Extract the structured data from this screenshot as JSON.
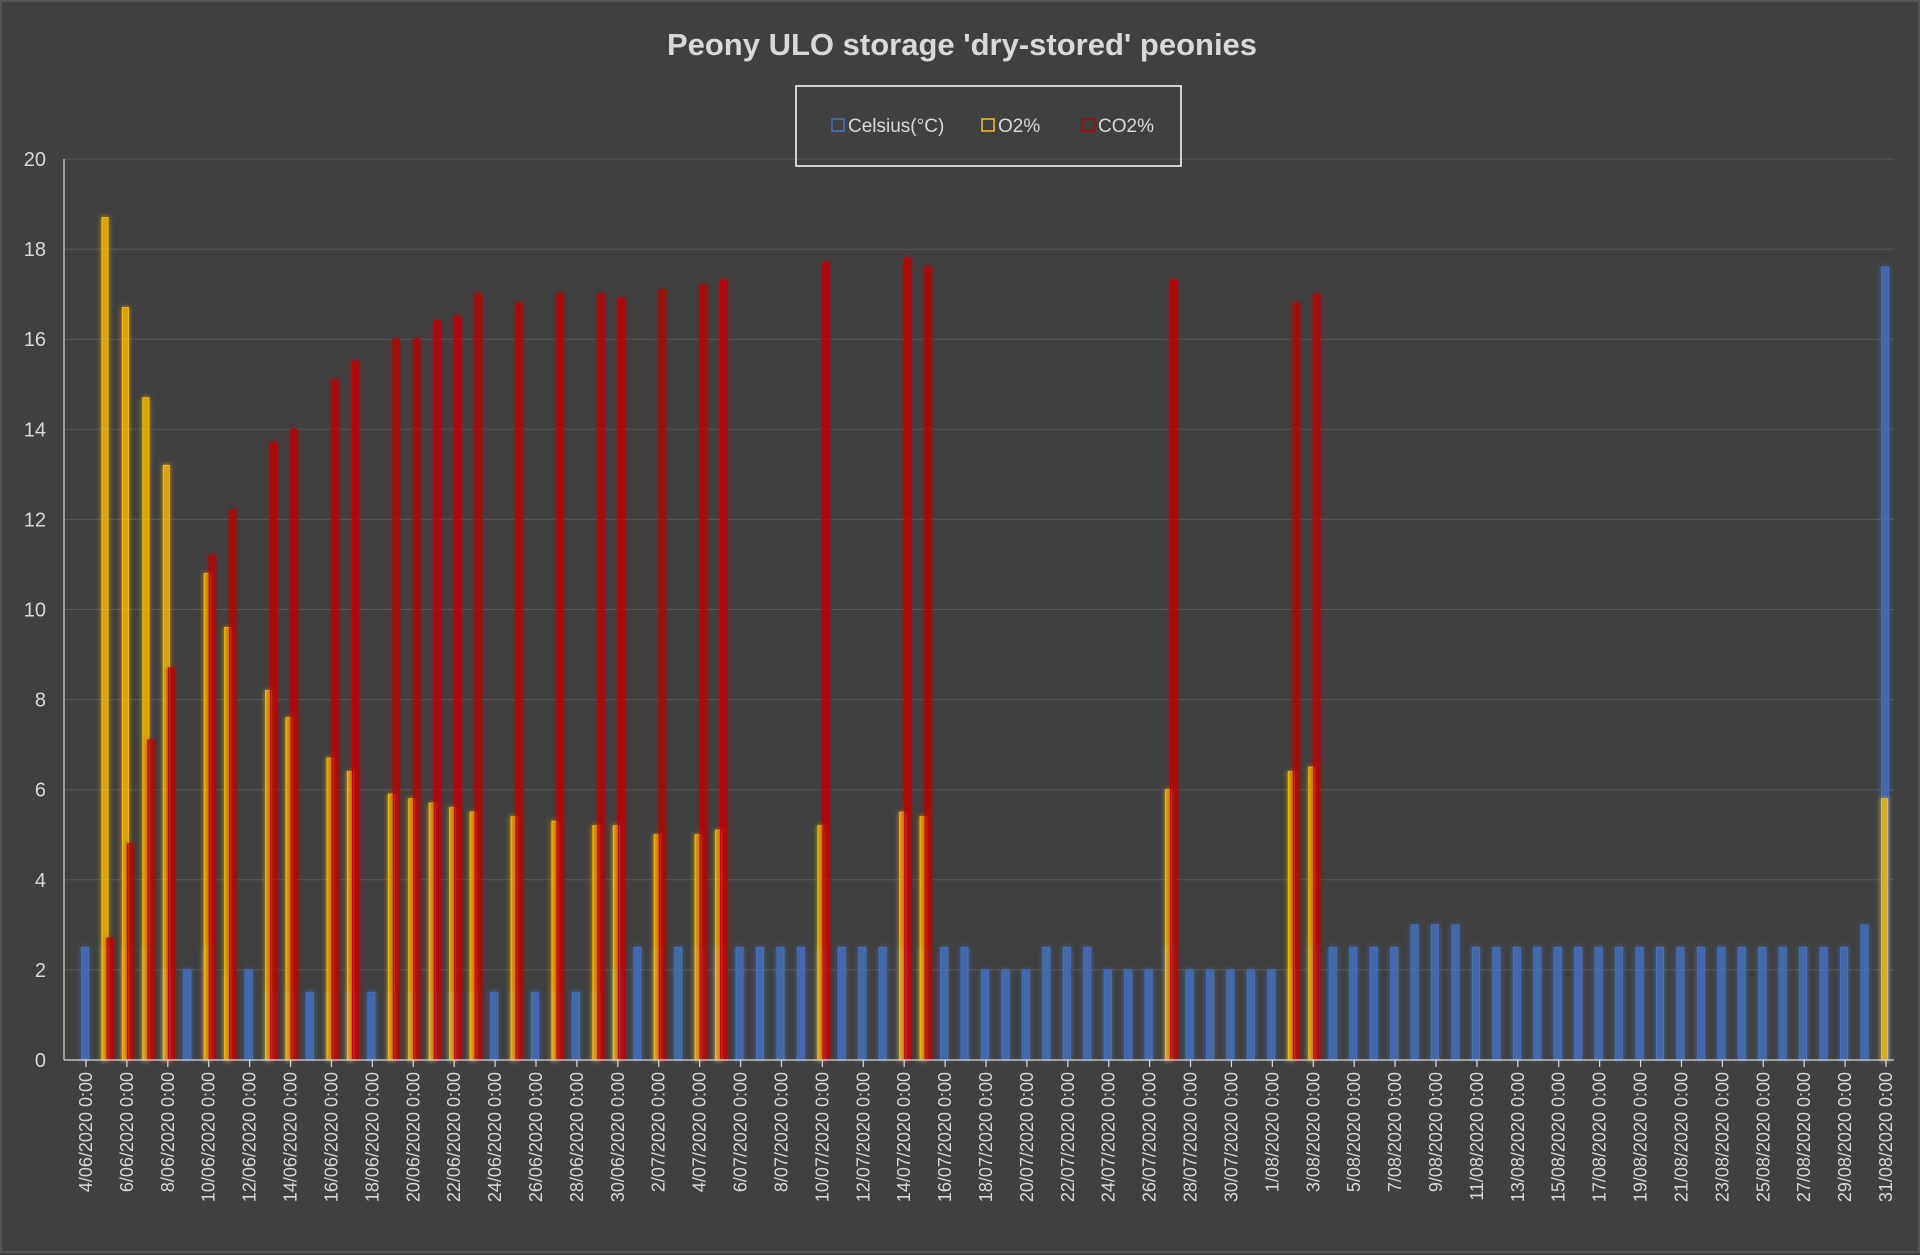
{
  "chart_data": {
    "type": "bar",
    "title": "Peony ULO storage 'dry-stored' peonies",
    "ylim": [
      0,
      20
    ],
    "yticks": [
      0,
      2,
      4,
      6,
      8,
      10,
      12,
      14,
      16,
      18,
      20
    ],
    "grid": true,
    "legend_position": "top-center",
    "x_start_date": "2020-06-04",
    "x_end_date": "2020-08-31",
    "xtick_labels": [
      "4/06/2020 0:00",
      "6/06/2020 0:00",
      "8/06/2020 0:00",
      "10/06/2020 0:00",
      "12/06/2020 0:00",
      "14/06/2020 0:00",
      "16/06/2020 0:00",
      "18/06/2020 0:00",
      "20/06/2020 0:00",
      "22/06/2020 0:00",
      "24/06/2020 0:00",
      "26/06/2020 0:00",
      "28/06/2020 0:00",
      "30/06/2020 0:00",
      "2/07/2020 0:00",
      "4/07/2020 0:00",
      "6/07/2020 0:00",
      "8/07/2020 0:00",
      "10/07/2020 0:00",
      "12/07/2020 0:00",
      "14/07/2020 0:00",
      "16/07/2020 0:00",
      "18/07/2020 0:00",
      "20/07/2020 0:00",
      "22/07/2020 0:00",
      "24/07/2020 0:00",
      "26/07/2020 0:00",
      "28/07/2020 0:00",
      "30/07/2020 0:00",
      "1/08/2020 0:00",
      "3/08/2020 0:00",
      "5/08/2020 0:00",
      "7/08/2020 0:00",
      "9/08/2020 0:00",
      "11/08/2020 0:00",
      "13/08/2020 0:00",
      "15/08/2020 0:00",
      "17/08/2020 0:00",
      "19/08/2020 0:00",
      "21/08/2020 0:00",
      "23/08/2020 0:00",
      "25/08/2020 0:00",
      "27/08/2020 0:00",
      "29/08/2020 0:00",
      "31/08/2020 0:00"
    ],
    "series": [
      {
        "name": "Celsius(°C)",
        "color": "#4472c4",
        "points": [
          [
            "2020-06-04",
            2.5
          ],
          [
            "2020-06-05",
            2.5
          ],
          [
            "2020-06-06",
            2.5
          ],
          [
            "2020-06-07",
            2.5
          ],
          [
            "2020-06-08",
            2.0
          ],
          [
            "2020-06-09",
            2.0
          ],
          [
            "2020-06-10",
            2.5
          ],
          [
            "2020-06-11",
            2.0
          ],
          [
            "2020-06-12",
            2.0
          ],
          [
            "2020-06-13",
            1.5
          ],
          [
            "2020-06-14",
            1.5
          ],
          [
            "2020-06-15",
            1.5
          ],
          [
            "2020-06-16",
            1.5
          ],
          [
            "2020-06-17",
            1.5
          ],
          [
            "2020-06-18",
            1.5
          ],
          [
            "2020-06-19",
            1.5
          ],
          [
            "2020-06-20",
            1.5
          ],
          [
            "2020-06-21",
            1.5
          ],
          [
            "2020-06-22",
            1.5
          ],
          [
            "2020-06-23",
            1.5
          ],
          [
            "2020-06-24",
            1.5
          ],
          [
            "2020-06-25",
            1.5
          ],
          [
            "2020-06-26",
            1.5
          ],
          [
            "2020-06-27",
            1.5
          ],
          [
            "2020-06-28",
            1.5
          ],
          [
            "2020-06-29",
            1.5
          ],
          [
            "2020-06-30",
            2.0
          ],
          [
            "2020-07-01",
            2.5
          ],
          [
            "2020-07-02",
            2.5
          ],
          [
            "2020-07-03",
            2.5
          ],
          [
            "2020-07-04",
            2.5
          ],
          [
            "2020-07-05",
            2.5
          ],
          [
            "2020-07-06",
            2.5
          ],
          [
            "2020-07-07",
            2.5
          ],
          [
            "2020-07-08",
            2.5
          ],
          [
            "2020-07-09",
            2.5
          ],
          [
            "2020-07-10",
            2.5
          ],
          [
            "2020-07-11",
            2.5
          ],
          [
            "2020-07-12",
            2.5
          ],
          [
            "2020-07-13",
            2.5
          ],
          [
            "2020-07-14",
            2.5
          ],
          [
            "2020-07-15",
            2.5
          ],
          [
            "2020-07-16",
            2.5
          ],
          [
            "2020-07-17",
            2.5
          ],
          [
            "2020-07-18",
            2.0
          ],
          [
            "2020-07-19",
            2.0
          ],
          [
            "2020-07-20",
            2.0
          ],
          [
            "2020-07-21",
            2.5
          ],
          [
            "2020-07-22",
            2.5
          ],
          [
            "2020-07-23",
            2.5
          ],
          [
            "2020-07-24",
            2.0
          ],
          [
            "2020-07-25",
            2.0
          ],
          [
            "2020-07-26",
            2.0
          ],
          [
            "2020-07-27",
            2.5
          ],
          [
            "2020-07-28",
            2.0
          ],
          [
            "2020-07-29",
            2.0
          ],
          [
            "2020-07-30",
            2.0
          ],
          [
            "2020-07-31",
            2.0
          ],
          [
            "2020-08-01",
            2.0
          ],
          [
            "2020-08-02",
            2.0
          ],
          [
            "2020-08-03",
            2.5
          ],
          [
            "2020-08-04",
            2.5
          ],
          [
            "2020-08-05",
            2.5
          ],
          [
            "2020-08-06",
            2.5
          ],
          [
            "2020-08-07",
            2.5
          ],
          [
            "2020-08-08",
            3.0
          ],
          [
            "2020-08-09",
            3.0
          ],
          [
            "2020-08-10",
            3.0
          ],
          [
            "2020-08-11",
            2.5
          ],
          [
            "2020-08-12",
            2.5
          ],
          [
            "2020-08-13",
            2.5
          ],
          [
            "2020-08-14",
            2.5
          ],
          [
            "2020-08-15",
            2.5
          ],
          [
            "2020-08-16",
            2.5
          ],
          [
            "2020-08-17",
            2.5
          ],
          [
            "2020-08-18",
            2.5
          ],
          [
            "2020-08-19",
            2.5
          ],
          [
            "2020-08-20",
            2.5
          ],
          [
            "2020-08-21",
            2.5
          ],
          [
            "2020-08-22",
            2.5
          ],
          [
            "2020-08-23",
            2.5
          ],
          [
            "2020-08-24",
            2.5
          ],
          [
            "2020-08-25",
            2.5
          ],
          [
            "2020-08-26",
            2.5
          ],
          [
            "2020-08-27",
            2.5
          ],
          [
            "2020-08-28",
            2.5
          ],
          [
            "2020-08-29",
            2.5
          ],
          [
            "2020-08-30",
            3.0
          ],
          [
            "2020-08-31",
            17.6
          ]
        ]
      },
      {
        "name": "O2%",
        "color": "#ffc000",
        "points": [
          [
            "2020-06-05",
            18.7
          ],
          [
            "2020-06-06",
            16.7
          ],
          [
            "2020-06-07",
            14.7
          ],
          [
            "2020-06-08",
            13.2
          ],
          [
            "2020-06-10",
            10.8
          ],
          [
            "2020-06-11",
            9.6
          ],
          [
            "2020-06-13",
            8.2
          ],
          [
            "2020-06-14",
            7.6
          ],
          [
            "2020-06-16",
            6.7
          ],
          [
            "2020-06-17",
            6.4
          ],
          [
            "2020-06-19",
            5.9
          ],
          [
            "2020-06-20",
            5.8
          ],
          [
            "2020-06-21",
            5.7
          ],
          [
            "2020-06-22",
            5.6
          ],
          [
            "2020-06-23",
            5.5
          ],
          [
            "2020-06-25",
            5.4
          ],
          [
            "2020-06-27",
            5.3
          ],
          [
            "2020-06-29",
            5.2
          ],
          [
            "2020-06-30",
            5.2
          ],
          [
            "2020-07-02",
            5.0
          ],
          [
            "2020-07-04",
            5.0
          ],
          [
            "2020-07-05",
            5.1
          ],
          [
            "2020-07-10",
            5.2
          ],
          [
            "2020-07-14",
            5.5
          ],
          [
            "2020-07-15",
            5.4
          ],
          [
            "2020-07-27",
            6.0
          ],
          [
            "2020-08-02",
            6.4
          ],
          [
            "2020-08-03",
            6.5
          ],
          [
            "2020-08-31",
            5.8
          ]
        ]
      },
      {
        "name": "CO2%",
        "color": "#c00000",
        "points": [
          [
            "2020-06-05",
            2.7
          ],
          [
            "2020-06-06",
            4.8
          ],
          [
            "2020-06-07",
            7.1
          ],
          [
            "2020-06-08",
            8.7
          ],
          [
            "2020-06-10",
            11.2
          ],
          [
            "2020-06-11",
            12.2
          ],
          [
            "2020-06-13",
            13.7
          ],
          [
            "2020-06-14",
            14.0
          ],
          [
            "2020-06-16",
            15.1
          ],
          [
            "2020-06-17",
            15.5
          ],
          [
            "2020-06-19",
            16.0
          ],
          [
            "2020-06-20",
            16.0
          ],
          [
            "2020-06-21",
            16.4
          ],
          [
            "2020-06-22",
            16.5
          ],
          [
            "2020-06-23",
            17.0
          ],
          [
            "2020-06-25",
            16.8
          ],
          [
            "2020-06-27",
            17.0
          ],
          [
            "2020-06-29",
            17.0
          ],
          [
            "2020-06-30",
            16.9
          ],
          [
            "2020-07-02",
            17.1
          ],
          [
            "2020-07-04",
            17.2
          ],
          [
            "2020-07-05",
            17.3
          ],
          [
            "2020-07-10",
            17.7
          ],
          [
            "2020-07-14",
            17.8
          ],
          [
            "2020-07-15",
            17.6
          ],
          [
            "2020-07-27",
            17.3
          ],
          [
            "2020-08-02",
            16.8
          ],
          [
            "2020-08-03",
            17.0
          ]
        ]
      }
    ]
  }
}
